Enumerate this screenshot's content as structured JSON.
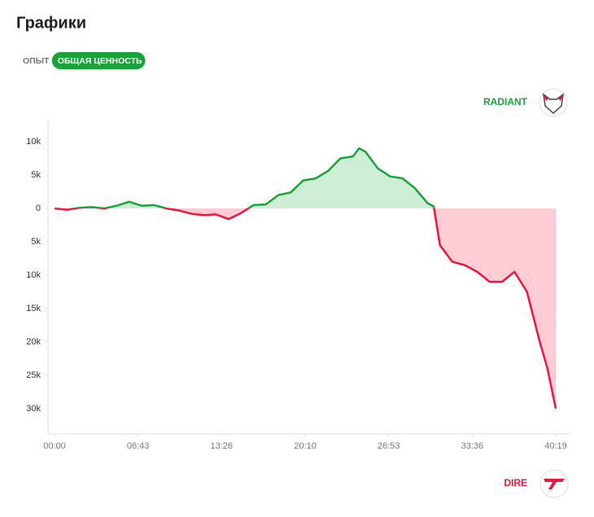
{
  "title": "Графики",
  "tabs": [
    "ОПЫТ",
    "ОБЩАЯ ЦЕННОСТЬ"
  ],
  "active_tab": 1,
  "radiant_label": "RADIANT",
  "dire_label": "DIRE",
  "chart_data": {
    "type": "line",
    "x": [
      0,
      60,
      120,
      180,
      240,
      300,
      360,
      420,
      480,
      540,
      600,
      660,
      720,
      780,
      840,
      900,
      960,
      1020,
      1080,
      1140,
      1200,
      1260,
      1320,
      1380,
      1440,
      1470,
      1500,
      1560,
      1620,
      1680,
      1740,
      1800,
      1830,
      1860,
      1920,
      1980,
      2040,
      2100,
      2160,
      2220,
      2280,
      2340,
      2379,
      2419
    ],
    "series": [
      {
        "name": "Общая ценность",
        "color": "#1aa33a",
        "negative_color": "#e8173f",
        "values": [
          0,
          -200,
          100,
          200,
          0,
          400,
          1000,
          400,
          500,
          0,
          -300,
          -800,
          -1000,
          -900,
          -1600,
          -700,
          500,
          600,
          2000,
          2400,
          4200,
          4500,
          5600,
          7500,
          7800,
          9000,
          8500,
          6000,
          4800,
          4500,
          3000,
          800,
          300,
          -5500,
          -8000,
          -8500,
          -9500,
          -11000,
          -11000,
          -9500,
          -12500,
          -19800,
          -24000,
          -30000
        ]
      }
    ],
    "xlim": [
      0,
      2419
    ],
    "xticks": [
      {
        "value": 0,
        "label": "00:00"
      },
      {
        "value": 403,
        "label": "06:43"
      },
      {
        "value": 806,
        "label": "13:26"
      },
      {
        "value": 1210,
        "label": "20:10"
      },
      {
        "value": 1613,
        "label": "26:53"
      },
      {
        "value": 2016,
        "label": "33:36"
      },
      {
        "value": 2419,
        "label": "40:19"
      }
    ],
    "ylim": [
      -33800,
      13300
    ],
    "yticks": [
      {
        "value": 10000,
        "label": "10k"
      },
      {
        "value": 5000,
        "label": "5k"
      },
      0,
      {
        "value": -5000,
        "label": "5k"
      },
      {
        "value": -10000,
        "label": "10k"
      },
      {
        "value": -15000,
        "label": "15k"
      },
      {
        "value": -20000,
        "label": "20k"
      },
      {
        "value": -25000,
        "label": "25k"
      },
      {
        "value": -30000,
        "label": "30k"
      }
    ],
    "grid": false
  }
}
